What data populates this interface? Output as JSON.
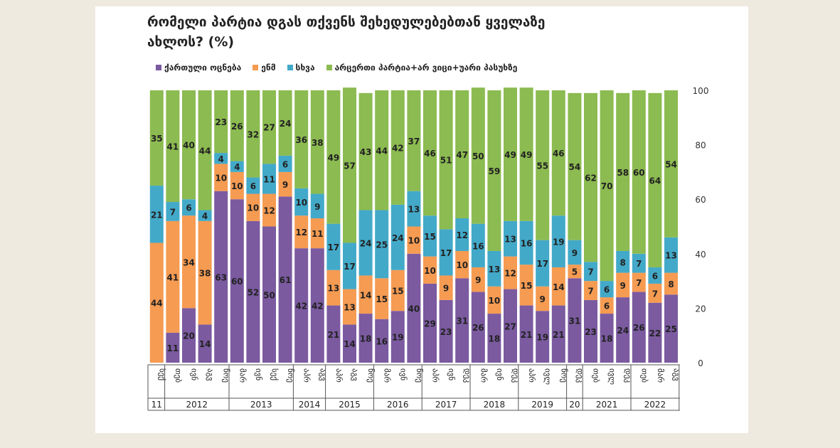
{
  "chart_data": {
    "type": "bar",
    "stacked": true,
    "title_lines": [
      "რომელი პარტია დგას თქვენს შეხედულებებთან ყველაზე",
      "ახლოს? (%)"
    ],
    "legend": [
      {
        "name": "ქართული ოცნება",
        "color": "#7b5aa0"
      },
      {
        "name": "ენმ",
        "color": "#f59b52"
      },
      {
        "name": "სხვა",
        "color": "#43a9c9"
      },
      {
        "name": "არცერთი პარტია+არ ვიცი+უარი პასუხზე",
        "color": "#8cbb51"
      }
    ],
    "ylim": [
      0,
      100
    ],
    "yticks": [
      0,
      20,
      40,
      60,
      80,
      100
    ],
    "categories": [
      "სექ",
      "თებ",
      "ივნ",
      "აგვ",
      "ნოე",
      "მარ",
      "ივნ",
      "სექ",
      "ნოე",
      "აპრ",
      "აგვ",
      "აპრ",
      "აგვ",
      "ნოე",
      "მარ",
      "ივნ",
      "ნოე",
      "აპრ",
      "ივნ",
      "დეკ",
      "მარ",
      "ივნ",
      "დეკ",
      "აპრ",
      "ივლ",
      "ნოე",
      "დეკ",
      "თებ",
      "ივლ",
      "დეკ",
      "თებ",
      "მარ",
      "აგვ"
    ],
    "year_groups": [
      {
        "label": "11",
        "count": 1
      },
      {
        "label": "2012",
        "count": 4
      },
      {
        "label": "2013",
        "count": 4
      },
      {
        "label": "2014",
        "count": 2
      },
      {
        "label": "2015",
        "count": 3
      },
      {
        "label": "2016",
        "count": 3
      },
      {
        "label": "2017",
        "count": 3
      },
      {
        "label": "2018",
        "count": 3
      },
      {
        "label": "2019",
        "count": 3
      },
      {
        "label": "20",
        "count": 1
      },
      {
        "label": "2021",
        "count": 3
      },
      {
        "label": "2022",
        "count": 3
      }
    ],
    "series": [
      {
        "name": "ქართული ოცნება",
        "values": [
          0,
          11,
          20,
          14,
          63,
          60,
          52,
          50,
          61,
          42,
          42,
          21,
          14,
          18,
          16,
          19,
          40,
          29,
          23,
          31,
          26,
          18,
          27,
          21,
          19,
          21,
          31,
          23,
          18,
          24,
          26,
          22,
          25
        ]
      },
      {
        "name": "ენმ",
        "values": [
          44,
          41,
          34,
          38,
          10,
          10,
          10,
          12,
          9,
          12,
          11,
          13,
          13,
          14,
          15,
          15,
          10,
          10,
          9,
          10,
          9,
          10,
          12,
          15,
          9,
          14,
          5,
          7,
          6,
          9,
          7,
          7,
          8
        ]
      },
      {
        "name": "სხვა",
        "values": [
          21,
          7,
          6,
          4,
          4,
          4,
          6,
          11,
          6,
          10,
          9,
          17,
          17,
          24,
          25,
          24,
          13,
          15,
          17,
          12,
          16,
          13,
          13,
          16,
          17,
          19,
          9,
          7,
          6,
          8,
          7,
          6,
          13
        ]
      },
      {
        "name": "არცერთი პარტია+არ ვიცი+უარი პასუხზე",
        "values": [
          35,
          41,
          40,
          44,
          23,
          26,
          32,
          27,
          24,
          36,
          38,
          49,
          57,
          43,
          44,
          42,
          37,
          46,
          51,
          47,
          50,
          59,
          49,
          49,
          55,
          46,
          54,
          62,
          70,
          58,
          60,
          64,
          54
        ]
      }
    ]
  }
}
